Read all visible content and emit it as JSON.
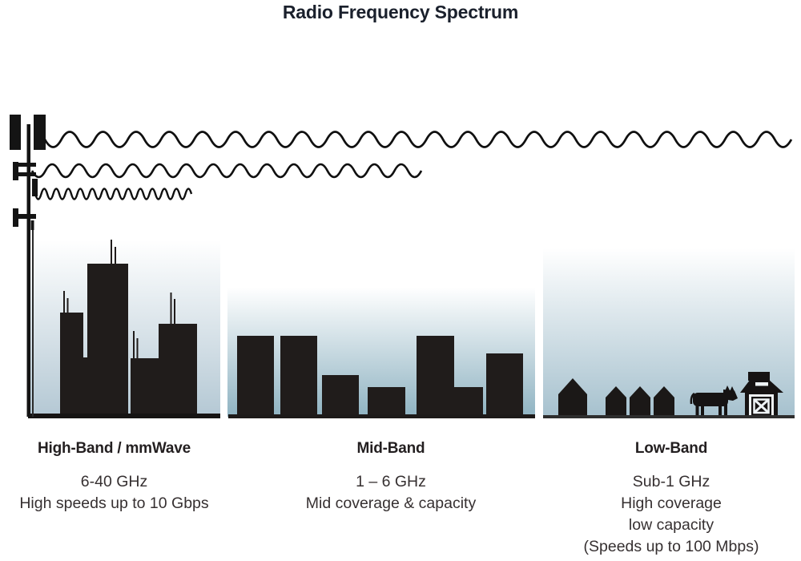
{
  "title": "Radio Frequency Spectrum",
  "bands": [
    {
      "name": "high-band",
      "heading": "High-Band / mmWave",
      "detail_lines": [
        "6-40 GHz",
        "High speeds up to 10 Gbps"
      ]
    },
    {
      "name": "mid-band",
      "heading": "Mid-Band",
      "detail_lines": [
        "1 – 6 GHz",
        "Mid coverage & capacity"
      ]
    },
    {
      "name": "low-band",
      "heading": "Low-Band",
      "detail_lines": [
        "Sub-1 GHz",
        "High coverage",
        "low capacity",
        "(Speeds up to 100 Mbps)"
      ]
    }
  ],
  "illustrations": {
    "cell_tower": "cell-tower-icon",
    "wave_long": "low-frequency-long-wave-icon",
    "wave_medium": "mid-frequency-medium-wave-icon",
    "wave_short": "high-frequency-short-wave-icon",
    "high_band_scene": "city-skyline-with-rooftop-antennas",
    "mid_band_scene": "mid-rise-buildings",
    "low_band_scene": "houses-cow-and-barn"
  },
  "colors": {
    "title_text": "#1a202c",
    "heading_text": "#231f20",
    "body_text": "#363031",
    "ink": "#141414",
    "building": "#201c1b",
    "sky_top": "#ffffff",
    "sky_bottom_high": "#b4c8d4",
    "sky_bottom_mid": "#8fb3c2",
    "sky_bottom_low": "#a6c1ce"
  }
}
